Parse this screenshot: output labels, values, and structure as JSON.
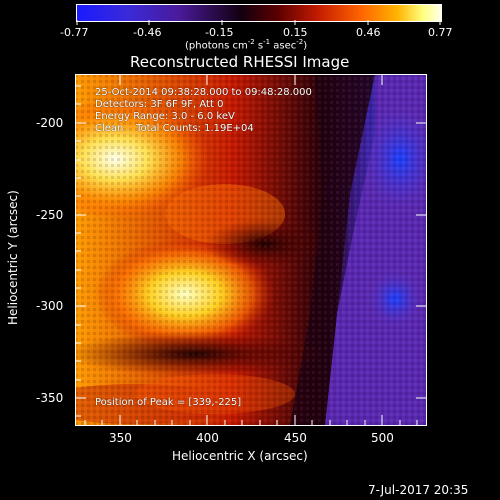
{
  "colorbar": {
    "ticks": [
      "-0.77",
      "-0.46",
      "-0.15",
      "0.15",
      "0.46",
      "0.77"
    ],
    "units_prefix": "(photons cm",
    "units_exp1": "-2",
    "units_mid": " s",
    "units_exp2": "-1",
    "units_suffix": " asec",
    "units_exp3": "-2",
    "units_close": ")"
  },
  "title": "Reconstructed RHESSI Image",
  "overlay": {
    "time_range": "25-Oct-2014 09:38:28.000 to 09:48:28.000",
    "detectors": "Detectors: 3F 6F 9F, Att 0",
    "energy_range": "Energy Range: 3.0 - 6.0 keV",
    "clean_counts": "Clean    Total Counts: 1.19E+04",
    "peak_position": "Position of Peak = [339,-225]"
  },
  "axes": {
    "xlabel": "Heliocentric X (arcsec)",
    "ylabel": "Heliocentric Y (arcsec)",
    "x_ticks": [
      "350",
      "400",
      "450",
      "500"
    ],
    "y_ticks": [
      "-200",
      "-250",
      "-300",
      "-350"
    ]
  },
  "footer": {
    "timestamp": "7-Jul-2017 20:35"
  },
  "colors": {
    "background": "#000000",
    "colormap_low": "#0a1aff",
    "colormap_mid": "#000000",
    "colormap_high": "#ffffdc"
  }
}
